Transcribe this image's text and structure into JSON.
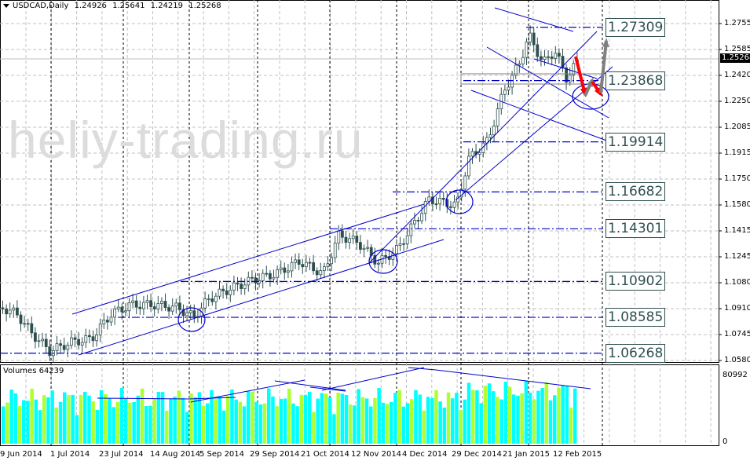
{
  "header": {
    "symbol": "USDCAD,Daily",
    "open": "1.24926",
    "high": "1.25641",
    "low": "1.24219",
    "close": "1.25268"
  },
  "watermark": "heliy-trading.ru",
  "price_axis": {
    "ticks": [
      "1.27550",
      "1.25850",
      "1.24200",
      "1.22500",
      "1.20850",
      "1.19150",
      "1.17500",
      "1.15800",
      "1.14150",
      "1.12450",
      "1.10800",
      "1.09100",
      "1.07450",
      "1.05800"
    ],
    "current_price": "1.25268"
  },
  "levels": [
    "1.27309",
    "1.23868",
    "1.19914",
    "1.16682",
    "1.14301",
    "1.10902",
    "1.08585",
    "1.06268"
  ],
  "volume_panel": {
    "label": "Volumes 64239",
    "max": "80992",
    "min": "0"
  },
  "time_axis": [
    "9 Jun 2014",
    "1 Jul 2014",
    "23 Jul 2014",
    "14 Aug 2014",
    "5 Sep 2014",
    "29 Sep 2014",
    "21 Oct 2014",
    "12 Nov 2014",
    "4 Dec 2014",
    "29 Dec 2014",
    "21 Jan 2015",
    "12 Feb 2015"
  ],
  "colors": {
    "candle": "#2f4f4f",
    "trendline": "#0000cd",
    "level_line": "#0000cd",
    "vol_up": "#00ffff",
    "vol_down": "#adff2f",
    "arrow_down": "#ff0000",
    "arrow_up": "#808080",
    "grid": "#c0c0c0"
  },
  "chart_data": {
    "type": "candlestick",
    "title": "USDCAD,Daily",
    "ohlc_last": {
      "open": 1.24926,
      "high": 1.25641,
      "low": 1.24219,
      "close": 1.25268
    },
    "x": [
      "9 Jun 2014",
      "1 Jul 2014",
      "23 Jul 2014",
      "14 Aug 2014",
      "5 Sep 2014",
      "29 Sep 2014",
      "21 Oct 2014",
      "12 Nov 2014",
      "4 Dec 2014",
      "29 Dec 2014",
      "21 Jan 2015",
      "12 Feb 2015"
    ],
    "approx_close": [
      1.09,
      1.065,
      1.088,
      1.092,
      1.09,
      1.12,
      1.125,
      1.135,
      1.16,
      1.162,
      1.24,
      1.2527
    ],
    "horizontal_levels": [
      1.27309,
      1.23868,
      1.19914,
      1.16682,
      1.14301,
      1.10902,
      1.08585,
      1.06268
    ],
    "ylim": [
      1.058,
      1.2755
    ],
    "volume_series": {
      "name": "Volumes",
      "last": 64239,
      "max": 80992,
      "min": 0
    },
    "annotations": [
      "ascending channel Jul-Dec 2014",
      "breakout Dec 2014",
      "red arrow down forecast to ~1.225",
      "grey arrow up forecast to ~1.273"
    ]
  }
}
